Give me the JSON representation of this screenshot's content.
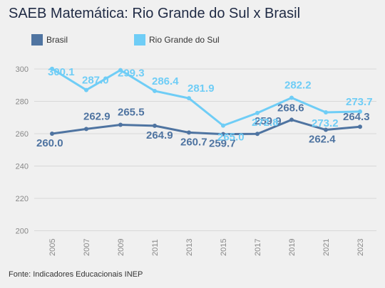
{
  "title": "SAEB Matemática: Rio Grande do Sul x Brasil",
  "source": "Fonte: Indicadores Educacionais INEP",
  "colors": {
    "background": "#f0f0f0",
    "grid": "#d8d8d8",
    "axis_text": "#888888"
  },
  "chart_data": {
    "type": "line",
    "title": "SAEB Matemática: Rio Grande do Sul x Brasil",
    "xlabel": "",
    "ylabel": "",
    "categories": [
      "2005",
      "2007",
      "2009",
      "2011",
      "2013",
      "2015",
      "2017",
      "2019",
      "2021",
      "2023"
    ],
    "yticks": [
      "200",
      "220",
      "240",
      "260",
      "280",
      "300"
    ],
    "ylim": [
      200,
      310
    ],
    "grid": true,
    "legend_position": "top-left",
    "series": [
      {
        "name": "Brasil",
        "color": "#4f74a1",
        "values": [
          260.0,
          262.9,
          265.5,
          264.9,
          260.7,
          259.7,
          259.9,
          268.6,
          262.4,
          264.3
        ],
        "labels": [
          "260.0",
          "262.9",
          "265.5",
          "264.9",
          "260.7",
          "259.7",
          "259.9",
          "268.6",
          "262.4",
          "264.3"
        ]
      },
      {
        "name": "Rio Grande do Sul",
        "color": "#6fcdf6",
        "values": [
          300.1,
          287.0,
          299.3,
          286.4,
          281.9,
          265.0,
          272.8,
          282.2,
          273.2,
          273.7
        ],
        "labels": [
          "300.1",
          "287.0",
          "299.3",
          "286.4",
          "281.9",
          "265.0",
          "272.8",
          "282.2",
          "273.2",
          "273.7"
        ]
      }
    ]
  }
}
